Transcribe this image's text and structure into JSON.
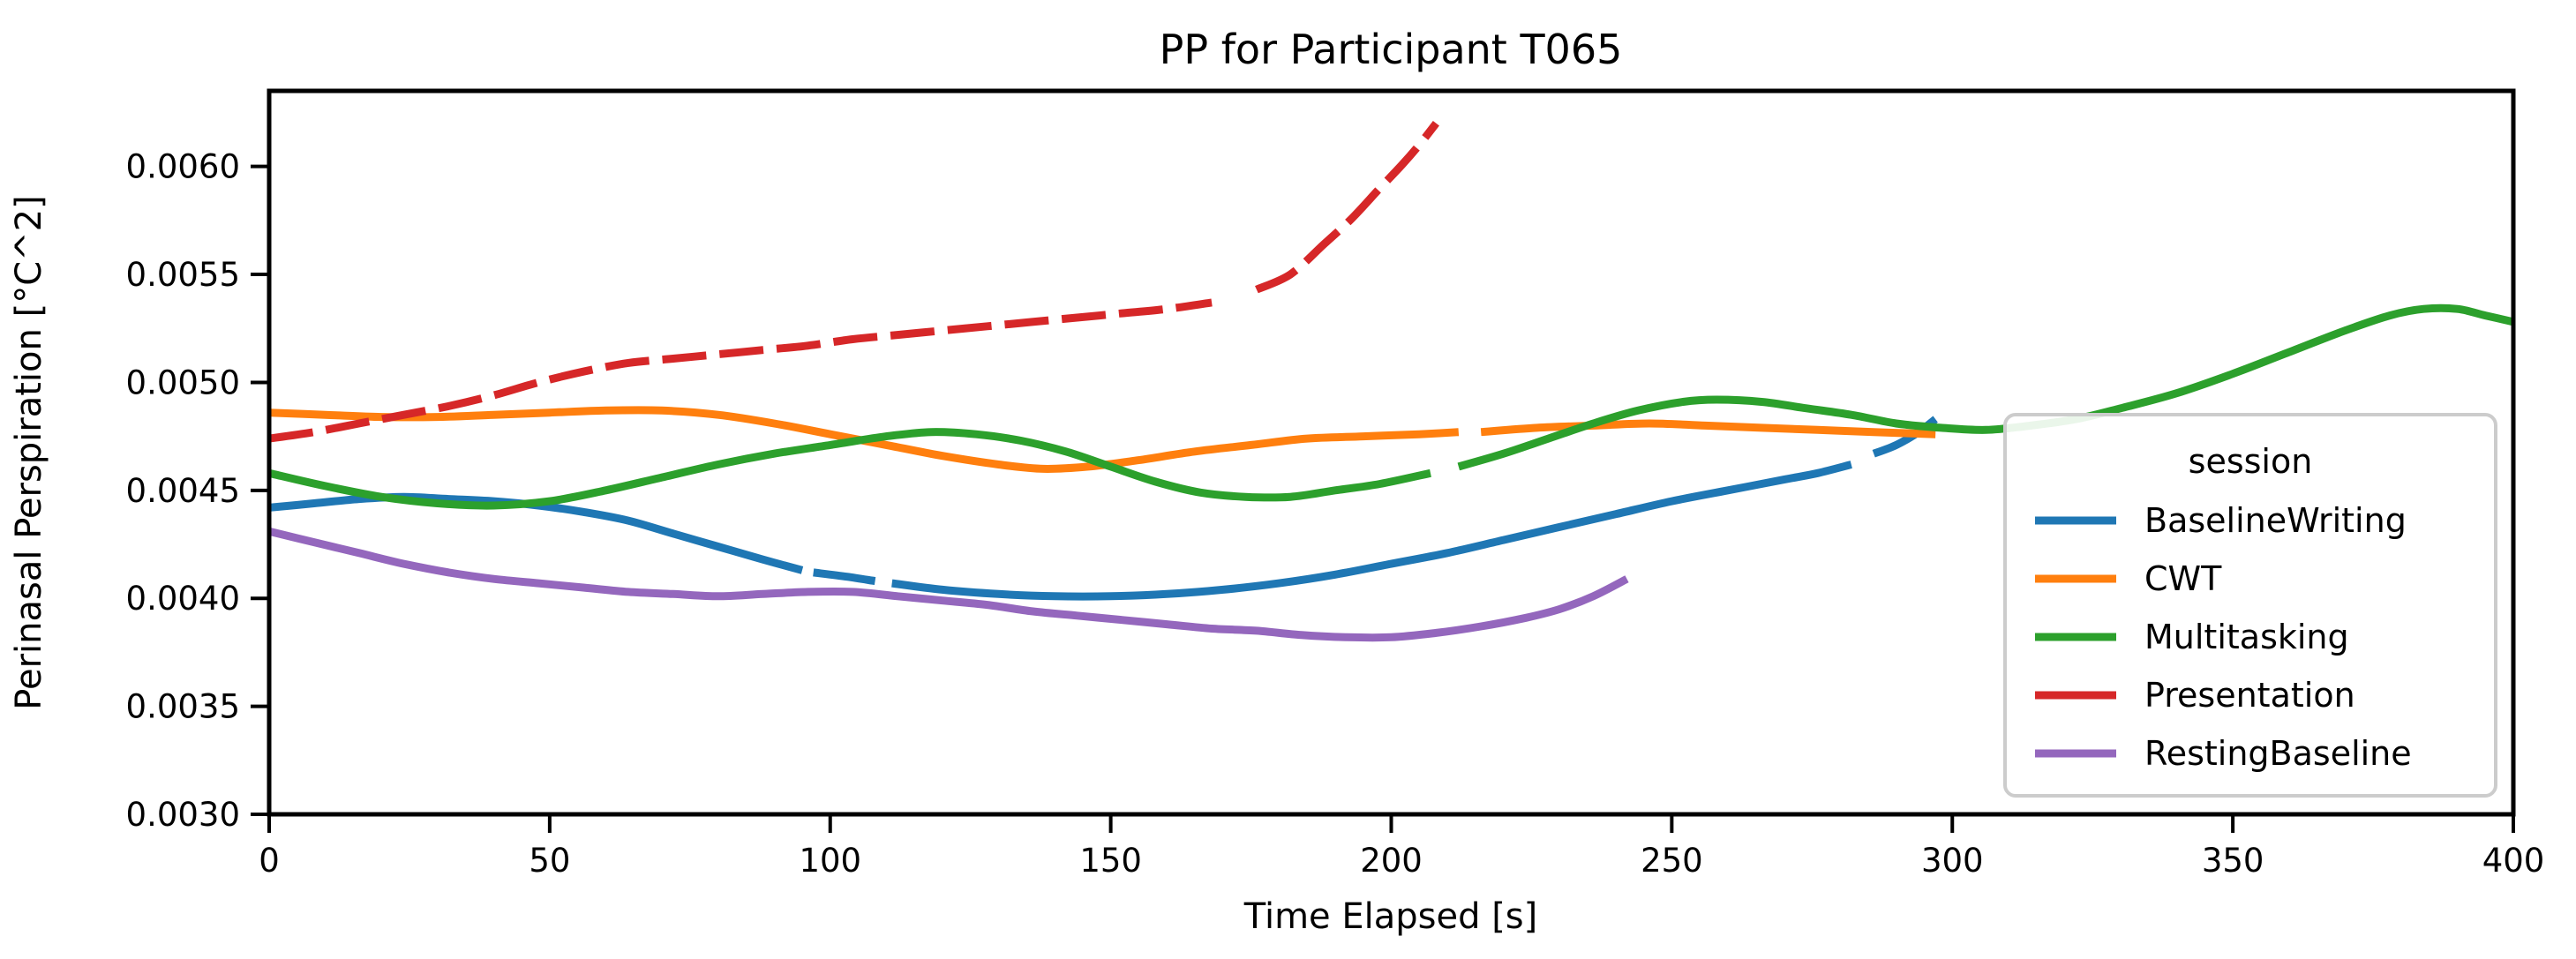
{
  "chart_data": {
    "type": "line",
    "title": "PP for Participant T065",
    "x_axis": {
      "label": "Time Elapsed [s]",
      "ticks": [
        0,
        50,
        100,
        150,
        200,
        250,
        300,
        350,
        400
      ],
      "range": [
        0,
        400
      ]
    },
    "y_axis": {
      "label": "Perinasal Perspiration [°C^2]",
      "ticks": [
        0.003,
        0.0035,
        0.004,
        0.0045,
        0.005,
        0.0055,
        0.006
      ],
      "tick_format_decimals": 4,
      "range": [
        0.003,
        0.00635
      ]
    },
    "grid": false,
    "legend": {
      "title": "session",
      "position": "lower right",
      "items": [
        {
          "label": "BaselineWriting",
          "color": "#1f77b4"
        },
        {
          "label": "CWT",
          "color": "#ff7f0e"
        },
        {
          "label": "Multitasking",
          "color": "#2ca02c"
        },
        {
          "label": "Presentation",
          "color": "#d62728"
        },
        {
          "label": "RestingBaseline",
          "color": "#9467bd"
        }
      ]
    },
    "series": [
      {
        "name": "BaselineWriting",
        "color": "#1f77b4",
        "style": "solid",
        "segments": [
          [
            [
              0,
              0.00442
            ],
            [
              8,
              0.00444
            ],
            [
              16,
              0.00446
            ],
            [
              24,
              0.00447
            ],
            [
              32,
              0.00446
            ],
            [
              40,
              0.00445
            ],
            [
              48,
              0.00443
            ],
            [
              56,
              0.0044
            ],
            [
              64,
              0.00436
            ],
            [
              72,
              0.0043
            ],
            [
              80,
              0.00424
            ],
            [
              88,
              0.00418
            ],
            [
              95,
              0.00413
            ]
          ],
          [
            [
              97,
              0.00412
            ],
            [
              103,
              0.0041
            ],
            [
              108,
              0.00408
            ]
          ],
          [
            [
              111,
              0.00407
            ],
            [
              120,
              0.00404
            ],
            [
              130,
              0.00402
            ],
            [
              140,
              0.00401
            ],
            [
              150,
              0.00401
            ],
            [
              160,
              0.00402
            ],
            [
              170,
              0.00404
            ],
            [
              180,
              0.00407
            ],
            [
              190,
              0.00411
            ],
            [
              200,
              0.00416
            ],
            [
              210,
              0.00421
            ],
            [
              220,
              0.00427
            ],
            [
              230,
              0.00433
            ],
            [
              240,
              0.00439
            ],
            [
              250,
              0.00445
            ],
            [
              260,
              0.0045
            ],
            [
              270,
              0.00455
            ],
            [
              276,
              0.00458
            ],
            [
              282,
              0.00462
            ]
          ],
          [
            [
              286,
              0.00467
            ],
            [
              290,
              0.00471
            ],
            [
              294,
              0.00477
            ],
            [
              297,
              0.00483
            ]
          ]
        ]
      },
      {
        "name": "CWT",
        "color": "#ff7f0e",
        "style": "solid",
        "segments": [
          [
            [
              0,
              0.00486
            ],
            [
              10,
              0.00485
            ],
            [
              20,
              0.00484
            ],
            [
              30,
              0.00484
            ],
            [
              40,
              0.00485
            ],
            [
              50,
              0.00486
            ],
            [
              60,
              0.00487
            ],
            [
              70,
              0.00487
            ],
            [
              80,
              0.00485
            ],
            [
              90,
              0.00481
            ],
            [
              100,
              0.00476
            ],
            [
              110,
              0.00471
            ],
            [
              120,
              0.00466
            ],
            [
              130,
              0.00462
            ],
            [
              138,
              0.0046
            ],
            [
              146,
              0.00461
            ],
            [
              155,
              0.00464
            ],
            [
              165,
              0.00468
            ],
            [
              175,
              0.00471
            ],
            [
              185,
              0.00474
            ],
            [
              195,
              0.00475
            ],
            [
              205,
              0.00476
            ],
            [
              212,
              0.00477
            ]
          ],
          [
            [
              216,
              0.00477
            ],
            [
              226,
              0.00479
            ],
            [
              236,
              0.0048
            ],
            [
              246,
              0.00481
            ],
            [
              256,
              0.0048
            ],
            [
              266,
              0.00479
            ],
            [
              276,
              0.00478
            ],
            [
              286,
              0.00477
            ],
            [
              297,
              0.00476
            ]
          ]
        ]
      },
      {
        "name": "Multitasking",
        "color": "#2ca02c",
        "style": "solid",
        "segments": [
          [
            [
              0,
              0.00458
            ],
            [
              10,
              0.00452
            ],
            [
              20,
              0.00447
            ],
            [
              30,
              0.00444
            ],
            [
              40,
              0.00443
            ],
            [
              50,
              0.00445
            ],
            [
              60,
              0.0045
            ],
            [
              70,
              0.00456
            ],
            [
              80,
              0.00462
            ],
            [
              90,
              0.00467
            ],
            [
              100,
              0.00471
            ],
            [
              110,
              0.00475
            ],
            [
              118,
              0.00477
            ],
            [
              126,
              0.00476
            ],
            [
              134,
              0.00473
            ],
            [
              142,
              0.00468
            ],
            [
              150,
              0.00461
            ],
            [
              158,
              0.00454
            ],
            [
              166,
              0.00449
            ],
            [
              174,
              0.00447
            ],
            [
              182,
              0.00447
            ],
            [
              190,
              0.0045
            ],
            [
              198,
              0.00453
            ],
            [
              207,
              0.00458
            ]
          ],
          [
            [
              212,
              0.00461
            ],
            [
              220,
              0.00467
            ],
            [
              228,
              0.00474
            ],
            [
              236,
              0.00481
            ],
            [
              244,
              0.00487
            ],
            [
              252,
              0.00491
            ],
            [
              258,
              0.00492
            ],
            [
              266,
              0.00491
            ],
            [
              274,
              0.00488
            ],
            [
              282,
              0.00485
            ],
            [
              290,
              0.00481
            ],
            [
              298,
              0.00479
            ],
            [
              306,
              0.00478
            ],
            [
              314,
              0.0048
            ],
            [
              322,
              0.00483
            ],
            [
              330,
              0.00488
            ],
            [
              340,
              0.00495
            ],
            [
              350,
              0.00504
            ],
            [
              360,
              0.00514
            ],
            [
              370,
              0.00524
            ],
            [
              378,
              0.00531
            ],
            [
              384,
              0.00534
            ],
            [
              390,
              0.00534
            ],
            [
              395,
              0.00531
            ],
            [
              400,
              0.00528
            ]
          ]
        ]
      },
      {
        "name": "Presentation",
        "color": "#d62728",
        "style": "dashed",
        "segments": [
          [
            [
              0,
              0.00474
            ],
            [
              8,
              0.00477
            ],
            [
              16,
              0.00481
            ],
            [
              24,
              0.00485
            ],
            [
              32,
              0.00489
            ],
            [
              40,
              0.00494
            ],
            [
              48,
              0.005
            ],
            [
              56,
              0.00505
            ],
            [
              64,
              0.00509
            ],
            [
              72,
              0.00511
            ],
            [
              80,
              0.00513
            ],
            [
              88,
              0.00515
            ],
            [
              96,
              0.00517
            ],
            [
              104,
              0.0052
            ],
            [
              112,
              0.00522
            ],
            [
              120,
              0.00524
            ],
            [
              128,
              0.00526
            ],
            [
              136,
              0.00528
            ],
            [
              144,
              0.0053
            ],
            [
              152,
              0.00532
            ],
            [
              160,
              0.00534
            ],
            [
              168,
              0.00537
            ]
          ],
          [
            [
              176,
              0.00543
            ],
            [
              182,
              0.0055
            ],
            [
              188,
              0.00564
            ],
            [
              193,
              0.00576
            ],
            [
              198,
              0.0059
            ],
            [
              202,
              0.00601
            ],
            [
              205,
              0.0061
            ],
            [
              208,
              0.0062
            ]
          ]
        ]
      },
      {
        "name": "RestingBaseline",
        "color": "#9467bd",
        "style": "solid",
        "segments": [
          [
            [
              0,
              0.00431
            ],
            [
              8,
              0.00426
            ],
            [
              16,
              0.00421
            ],
            [
              24,
              0.00416
            ],
            [
              32,
              0.00412
            ],
            [
              40,
              0.00409
            ],
            [
              48,
              0.00407
            ],
            [
              56,
              0.00405
            ],
            [
              64,
              0.00403
            ],
            [
              72,
              0.00402
            ],
            [
              80,
              0.00401
            ],
            [
              88,
              0.00402
            ],
            [
              96,
              0.00403
            ],
            [
              104,
              0.00403
            ],
            [
              112,
              0.00401
            ],
            [
              120,
              0.00399
            ],
            [
              128,
              0.00397
            ],
            [
              136,
              0.00394
            ],
            [
              144,
              0.00392
            ],
            [
              152,
              0.0039
            ],
            [
              160,
              0.00388
            ],
            [
              168,
              0.00386
            ],
            [
              176,
              0.00385
            ],
            [
              184,
              0.00383
            ],
            [
              192,
              0.00382
            ],
            [
              200,
              0.00382
            ],
            [
              208,
              0.00384
            ],
            [
              216,
              0.00387
            ],
            [
              224,
              0.00391
            ],
            [
              230,
              0.00395
            ],
            [
              236,
              0.00401
            ],
            [
              242,
              0.00409
            ]
          ]
        ]
      }
    ]
  },
  "style": {
    "spine_color": "#000000",
    "legend_border_color": "#cccccc",
    "background": "#ffffff"
  }
}
